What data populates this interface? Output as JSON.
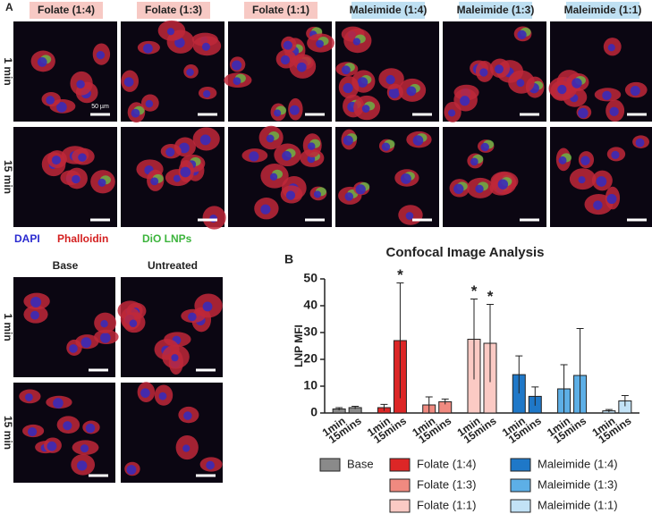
{
  "panel_a": {
    "label": "A",
    "columns": [
      "Folate (1:4)",
      "Folate (1:3)",
      "Folate (1:1)",
      "Maleimide (1:4)",
      "Maleimide (1:3)",
      "Maleimide (1:1)"
    ],
    "rows": [
      "1 min",
      "15 min"
    ],
    "scale_bar": "50 µm",
    "stains": [
      "DAPI",
      "Phalloidin",
      "DiO LNPs"
    ],
    "controls": {
      "columns": [
        "Base",
        "Untreated"
      ],
      "rows": [
        "1 min",
        "15 min"
      ]
    }
  },
  "chart_data": {
    "type": "bar",
    "panel_label": "B",
    "title": "Confocal Image Analysis",
    "y_label": "LNP MFI",
    "categories": [
      "1min",
      "15mins"
    ],
    "series": [
      {
        "name": "Base",
        "color": "#8a8a8a",
        "values": [
          1.5,
          2
        ],
        "errors": [
          0.5,
          0.5
        ]
      },
      {
        "name": "Folate (1:4)",
        "color": "#dc2626",
        "values": [
          2,
          27
        ],
        "errors": [
          1.2,
          21.5
        ]
      },
      {
        "name": "Folate (1:3)",
        "color": "#f08a80",
        "values": [
          3,
          4.2
        ],
        "errors": [
          3,
          1
        ]
      },
      {
        "name": "Folate (1:1)",
        "color": "#fbcac4",
        "values": [
          27.5,
          26
        ],
        "errors": [
          15,
          14.5
        ]
      },
      {
        "name": "Maleimide (1:4)",
        "color": "#1f78c8",
        "values": [
          14.3,
          6.2
        ],
        "errors": [
          7,
          3.5
        ]
      },
      {
        "name": "Maleimide (1:3)",
        "color": "#5dafe6",
        "values": [
          9,
          14
        ],
        "errors": [
          9,
          17.5
        ]
      },
      {
        "name": "Maleimide (1:1)",
        "color": "#c2e2f6",
        "values": [
          0.8,
          4.5
        ],
        "errors": [
          0.5,
          2
        ]
      }
    ],
    "annotations": [
      {
        "text": "*",
        "series": "Folate (1:4)",
        "category": "15mins"
      },
      {
        "text": "*",
        "series": "Folate (1:1)",
        "category": "1min"
      },
      {
        "text": "*",
        "series": "Folate (1:1)",
        "category": "15mins"
      }
    ],
    "ylim": [
      0,
      50
    ],
    "yticks": [
      0,
      10,
      20,
      30,
      40,
      50
    ]
  }
}
